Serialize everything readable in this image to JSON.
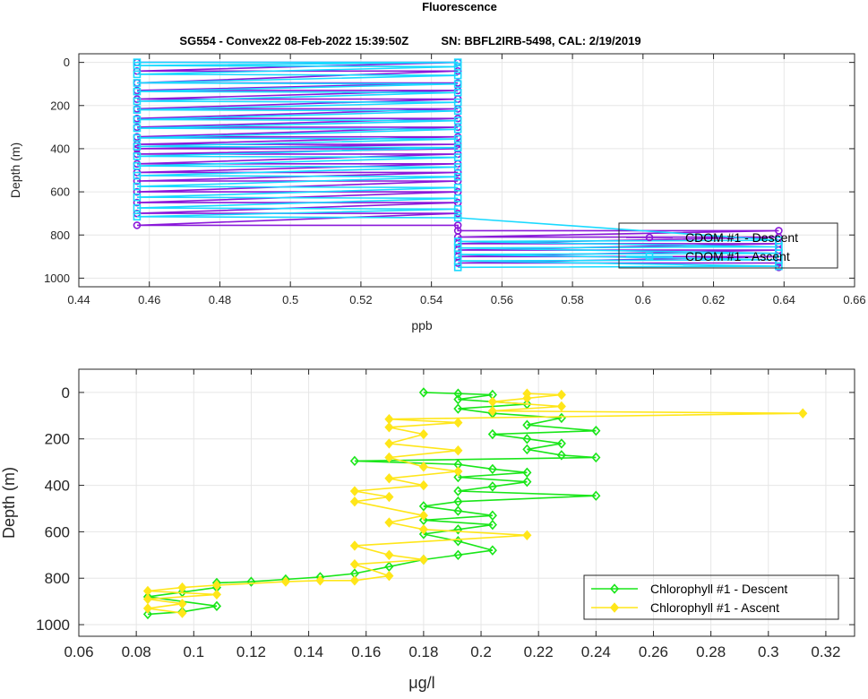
{
  "figure": {
    "title": "Fluorescence",
    "subtitle": "SG554 - Convex22 08-Feb-2022 15:39:50Z          SN: BBFL2IRB-5498, CAL: 2/19/2019"
  },
  "chart_data": [
    {
      "type": "line",
      "title": "",
      "xlabel": "ppb",
      "ylabel": "Depth (m)",
      "xlim": [
        0.44,
        0.66
      ],
      "ylim": [
        1040,
        -40
      ],
      "y_reversed": true,
      "grid": true,
      "legend_position": "bottom-right",
      "xticks": [
        "0.44",
        "0.46",
        "0.48",
        "0.5",
        "0.52",
        "0.54",
        "0.56",
        "0.58",
        "0.6",
        "0.62",
        "0.64",
        "0.66"
      ],
      "xtick_values": [
        0.44,
        0.46,
        0.48,
        0.5,
        0.52,
        0.54,
        0.56,
        0.58,
        0.6,
        0.62,
        0.64,
        0.66
      ],
      "yticks": [
        "0",
        "200",
        "400",
        "600",
        "800",
        "1000"
      ],
      "ytick_values": [
        0,
        200,
        400,
        600,
        800,
        1000
      ],
      "series": [
        {
          "name": "CDOM #1 - Descent",
          "color": "#8a19d9",
          "marker": "circle",
          "points": [
            [
              0.4565,
              0
            ],
            [
              0.5475,
              0
            ],
            [
              0.4565,
              40
            ],
            [
              0.5475,
              40
            ],
            [
              0.4565,
              95
            ],
            [
              0.5475,
              95
            ],
            [
              0.4565,
              130
            ],
            [
              0.5475,
              130
            ],
            [
              0.4565,
              170
            ],
            [
              0.5475,
              170
            ],
            [
              0.4565,
              215
            ],
            [
              0.5475,
              215
            ],
            [
              0.4565,
              260
            ],
            [
              0.5475,
              260
            ],
            [
              0.4565,
              300
            ],
            [
              0.5475,
              300
            ],
            [
              0.4565,
              345
            ],
            [
              0.5475,
              345
            ],
            [
              0.4565,
              380
            ],
            [
              0.5475,
              380
            ],
            [
              0.4565,
              400
            ],
            [
              0.5475,
              400
            ],
            [
              0.4565,
              425
            ],
            [
              0.5475,
              425
            ],
            [
              0.4565,
              470
            ],
            [
              0.5475,
              470
            ],
            [
              0.4565,
              510
            ],
            [
              0.5475,
              510
            ],
            [
              0.4565,
              550
            ],
            [
              0.5475,
              550
            ],
            [
              0.4565,
              600
            ],
            [
              0.5475,
              600
            ],
            [
              0.4565,
              650
            ],
            [
              0.5475,
              650
            ],
            [
              0.4565,
              700
            ],
            [
              0.5475,
              700
            ],
            [
              0.4565,
              755
            ],
            [
              0.5475,
              755
            ],
            [
              0.5475,
              780
            ],
            [
              0.6385,
              780
            ],
            [
              0.5475,
              810
            ],
            [
              0.6385,
              810
            ],
            [
              0.5475,
              840
            ],
            [
              0.6385,
              840
            ],
            [
              0.5475,
              870
            ],
            [
              0.6385,
              870
            ],
            [
              0.5475,
              900
            ],
            [
              0.6385,
              900
            ],
            [
              0.5475,
              930
            ],
            [
              0.6385,
              930
            ],
            [
              0.6385,
              950
            ]
          ]
        },
        {
          "name": "CDOM #1 - Ascent",
          "color": "#19d9ff",
          "marker": "square",
          "points": [
            [
              0.5475,
              950
            ],
            [
              0.6385,
              945
            ],
            [
              0.5475,
              920
            ],
            [
              0.6385,
              915
            ],
            [
              0.5475,
              890
            ],
            [
              0.6385,
              885
            ],
            [
              0.5475,
              860
            ],
            [
              0.6385,
              855
            ],
            [
              0.5475,
              830
            ],
            [
              0.6385,
              825
            ],
            [
              0.5475,
              720
            ],
            [
              0.4565,
              715
            ],
            [
              0.5475,
              680
            ],
            [
              0.4565,
              675
            ],
            [
              0.5475,
              630
            ],
            [
              0.4565,
              625
            ],
            [
              0.5475,
              580
            ],
            [
              0.4565,
              575
            ],
            [
              0.5475,
              530
            ],
            [
              0.4565,
              525
            ],
            [
              0.5475,
              485
            ],
            [
              0.4565,
              480
            ],
            [
              0.5475,
              440
            ],
            [
              0.4565,
              435
            ],
            [
              0.5475,
              395
            ],
            [
              0.4565,
              390
            ],
            [
              0.5475,
              355
            ],
            [
              0.4565,
              350
            ],
            [
              0.5475,
              310
            ],
            [
              0.4565,
              305
            ],
            [
              0.5475,
              270
            ],
            [
              0.4565,
              265
            ],
            [
              0.5475,
              225
            ],
            [
              0.4565,
              220
            ],
            [
              0.5475,
              185
            ],
            [
              0.4565,
              180
            ],
            [
              0.5475,
              140
            ],
            [
              0.4565,
              135
            ],
            [
              0.5475,
              100
            ],
            [
              0.4565,
              95
            ],
            [
              0.5475,
              60
            ],
            [
              0.4565,
              55
            ],
            [
              0.5475,
              20
            ],
            [
              0.4565,
              15
            ],
            [
              0.5475,
              0
            ],
            [
              0.4565,
              0
            ]
          ]
        }
      ]
    },
    {
      "type": "line",
      "title": "",
      "xlabel": "μg/l",
      "ylabel": "Depth (m)",
      "xlim": [
        0.06,
        0.33
      ],
      "ylim": [
        1050,
        -100
      ],
      "y_reversed": true,
      "grid": true,
      "legend_position": "bottom-right",
      "xticks": [
        "0.06",
        "0.08",
        "0.1",
        "0.12",
        "0.14",
        "0.16",
        "0.18",
        "0.2",
        "0.22",
        "0.24",
        "0.26",
        "0.28",
        "0.3",
        "0.32"
      ],
      "xtick_values": [
        0.06,
        0.08,
        0.1,
        0.12,
        0.14,
        0.16,
        0.18,
        0.2,
        0.22,
        0.24,
        0.26,
        0.28,
        0.3,
        0.32
      ],
      "yticks": [
        "0",
        "200",
        "400",
        "600",
        "800",
        "1000"
      ],
      "ytick_values": [
        0,
        200,
        400,
        600,
        800,
        1000
      ],
      "series": [
        {
          "name": "Chlorophyll #1 - Descent",
          "color": "#19e619",
          "marker": "diamond",
          "points": [
            [
              0.18,
              0
            ],
            [
              0.192,
              5
            ],
            [
              0.204,
              10
            ],
            [
              0.192,
              30
            ],
            [
              0.216,
              50
            ],
            [
              0.192,
              70
            ],
            [
              0.204,
              90
            ],
            [
              0.228,
              110
            ],
            [
              0.216,
              140
            ],
            [
              0.24,
              165
            ],
            [
              0.204,
              180
            ],
            [
              0.216,
              200
            ],
            [
              0.228,
              220
            ],
            [
              0.216,
              245
            ],
            [
              0.228,
              270
            ],
            [
              0.24,
              280
            ],
            [
              0.156,
              295
            ],
            [
              0.192,
              310
            ],
            [
              0.204,
              330
            ],
            [
              0.216,
              345
            ],
            [
              0.192,
              365
            ],
            [
              0.216,
              385
            ],
            [
              0.204,
              405
            ],
            [
              0.192,
              425
            ],
            [
              0.24,
              445
            ],
            [
              0.192,
              470
            ],
            [
              0.18,
              490
            ],
            [
              0.192,
              510
            ],
            [
              0.204,
              530
            ],
            [
              0.18,
              550
            ],
            [
              0.204,
              570
            ],
            [
              0.192,
              590
            ],
            [
              0.18,
              610
            ],
            [
              0.192,
              640
            ],
            [
              0.204,
              680
            ],
            [
              0.192,
              700
            ],
            [
              0.18,
              720
            ],
            [
              0.168,
              750
            ],
            [
              0.156,
              780
            ],
            [
              0.144,
              795
            ],
            [
              0.132,
              805
            ],
            [
              0.12,
              815
            ],
            [
              0.108,
              820
            ],
            [
              0.108,
              840
            ],
            [
              0.096,
              860
            ],
            [
              0.084,
              880
            ],
            [
              0.108,
              920
            ],
            [
              0.096,
              945
            ],
            [
              0.084,
              955
            ]
          ]
        },
        {
          "name": "Chlorophyll #1 - Ascent",
          "color": "#ffe619",
          "marker": "diamond",
          "points": [
            [
              0.096,
              950
            ],
            [
              0.084,
              930
            ],
            [
              0.096,
              910
            ],
            [
              0.084,
              890
            ],
            [
              0.108,
              870
            ],
            [
              0.084,
              855
            ],
            [
              0.096,
              840
            ],
            [
              0.108,
              830
            ],
            [
              0.132,
              815
            ],
            [
              0.144,
              810
            ],
            [
              0.156,
              810
            ],
            [
              0.168,
              790
            ],
            [
              0.156,
              740
            ],
            [
              0.18,
              720
            ],
            [
              0.168,
              700
            ],
            [
              0.156,
              660
            ],
            [
              0.216,
              615
            ],
            [
              0.18,
              590
            ],
            [
              0.168,
              560
            ],
            [
              0.18,
              530
            ],
            [
              0.156,
              470
            ],
            [
              0.168,
              450
            ],
            [
              0.156,
              425
            ],
            [
              0.18,
              400
            ],
            [
              0.168,
              370
            ],
            [
              0.192,
              340
            ],
            [
              0.18,
              320
            ],
            [
              0.168,
              280
            ],
            [
              0.192,
              250
            ],
            [
              0.168,
              220
            ],
            [
              0.18,
              180
            ],
            [
              0.168,
              150
            ],
            [
              0.192,
              130
            ],
            [
              0.168,
              115
            ],
            [
              0.312,
              90
            ],
            [
              0.204,
              80
            ],
            [
              0.228,
              60
            ],
            [
              0.204,
              40
            ],
            [
              0.216,
              25
            ],
            [
              0.228,
              10
            ],
            [
              0.216,
              5
            ]
          ]
        }
      ]
    }
  ]
}
